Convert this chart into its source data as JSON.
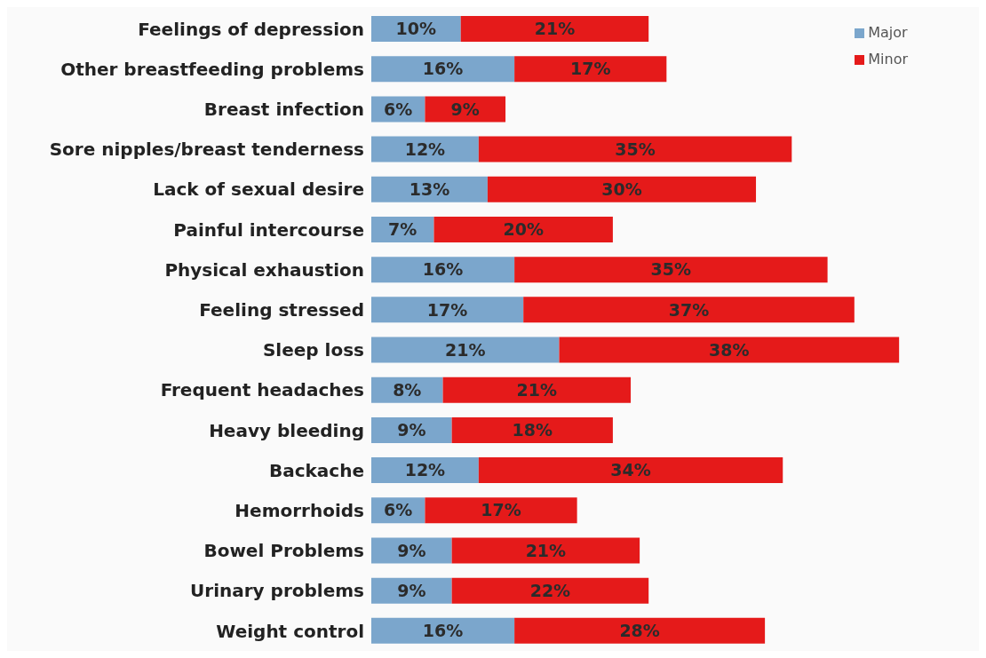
{
  "chart_data": {
    "type": "bar",
    "orientation": "horizontal",
    "stacked": true,
    "legend": "top right",
    "grid": false,
    "categories": [
      "Feelings of depression",
      "Other breastfeeding problems",
      "Breast infection",
      "Sore nipples/breast tenderness",
      "Lack of sexual desire",
      "Painful intercourse",
      "Physical exhaustion",
      "Feeling stressed",
      "Sleep loss",
      "Frequent headaches",
      "Heavy bleeding",
      "Backache",
      "Hemorrhoids",
      "Bowel Problems",
      "Urinary problems",
      "Weight control"
    ],
    "series": [
      {
        "name": "Major",
        "color": "#7ba6cc",
        "values": [
          10,
          16,
          6,
          12,
          13,
          7,
          16,
          17,
          21,
          8,
          9,
          12,
          6,
          9,
          9,
          16
        ],
        "value_labels": [
          "10%",
          "16%",
          "6%",
          "12%",
          "13%",
          "7%",
          "16%",
          "17%",
          "21%",
          "8%",
          "9%",
          "12%",
          "6%",
          "9%",
          "9%",
          "16%"
        ]
      },
      {
        "name": "Minor",
        "color": "#e51a1a",
        "values": [
          21,
          17,
          9,
          35,
          30,
          20,
          35,
          37,
          38,
          21,
          18,
          34,
          17,
          21,
          22,
          28
        ],
        "value_labels": [
          "21%",
          "17%",
          "9%",
          "35%",
          "30%",
          "20%",
          "35%",
          "37%",
          "38%",
          "21%",
          "18%",
          "34%",
          "17%",
          "21%",
          "22%",
          "28%"
        ]
      }
    ]
  }
}
